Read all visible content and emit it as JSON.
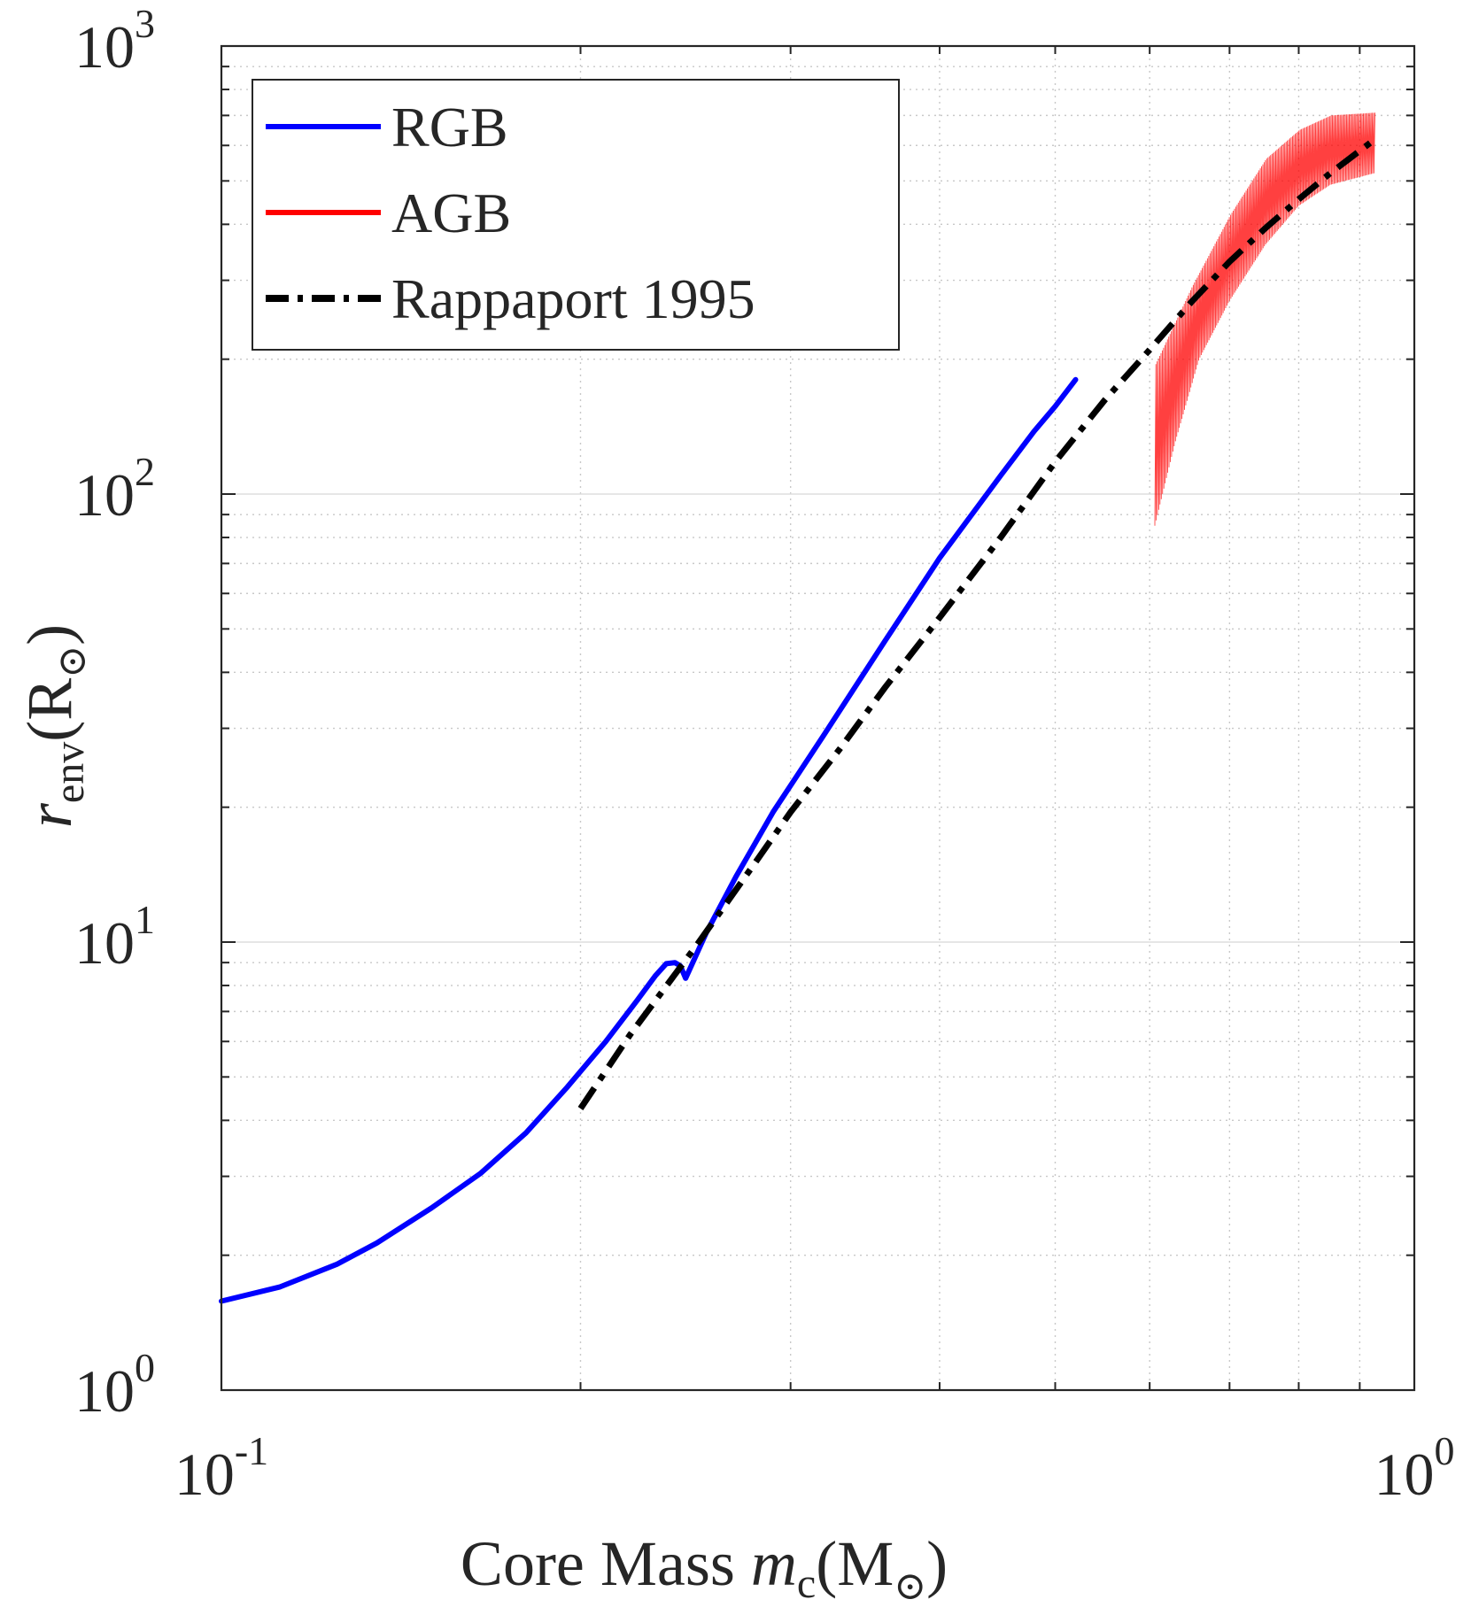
{
  "chart_data": {
    "type": "line",
    "x_scale": "log",
    "y_scale": "log",
    "xlim": [
      0.1,
      1.0
    ],
    "ylim": [
      1,
      1000
    ],
    "grid": true,
    "legend_position": "top-left",
    "xlabel": "Core Mass m_c(M_⊙)",
    "xlabel_parts": {
      "prefix": "Core Mass ",
      "var": "m",
      "sub": "c",
      "unit": "(M",
      "odot": "⊙",
      "close": ")"
    },
    "ylabel": "r_env(R_⊙)",
    "ylabel_parts": {
      "var": "r",
      "sub": "env",
      "unit": "(R",
      "odot": "⊙",
      "close": ")"
    },
    "x_ticks": [
      {
        "value": 0.1,
        "base": "10",
        "exp": "-1"
      },
      {
        "value": 1.0,
        "base": "10",
        "exp": "0"
      }
    ],
    "y_ticks": [
      {
        "value": 1,
        "base": "10",
        "exp": "0"
      },
      {
        "value": 10,
        "base": "10",
        "exp": "1"
      },
      {
        "value": 100,
        "base": "10",
        "exp": "2"
      },
      {
        "value": 1000,
        "base": "10",
        "exp": "3"
      }
    ],
    "series": [
      {
        "name": "RGB",
        "color": "#0000ff",
        "style": "solid",
        "points": [
          [
            0.1,
            1.58
          ],
          [
            0.112,
            1.7
          ],
          [
            0.125,
            1.91
          ],
          [
            0.135,
            2.13
          ],
          [
            0.15,
            2.55
          ],
          [
            0.165,
            3.05
          ],
          [
            0.18,
            3.75
          ],
          [
            0.195,
            4.75
          ],
          [
            0.21,
            6.0
          ],
          [
            0.223,
            7.4
          ],
          [
            0.231,
            8.4
          ],
          [
            0.236,
            8.95
          ],
          [
            0.24,
            9.0
          ],
          [
            0.2425,
            8.85
          ],
          [
            0.245,
            8.3
          ],
          [
            0.255,
            10.5
          ],
          [
            0.27,
            14.0
          ],
          [
            0.29,
            19.5
          ],
          [
            0.32,
            29.0
          ],
          [
            0.36,
            47.0
          ],
          [
            0.4,
            72.0
          ],
          [
            0.45,
            110.0
          ],
          [
            0.48,
            138.0
          ],
          [
            0.5,
            157.0
          ],
          [
            0.52,
            180.0
          ]
        ]
      },
      {
        "name": "AGB",
        "color": "#ff0000",
        "style": "band",
        "x_range": [
          0.606,
          0.925
        ],
        "upper": [
          [
            0.606,
            195
          ],
          [
            0.65,
            290
          ],
          [
            0.7,
            420
          ],
          [
            0.75,
            560
          ],
          [
            0.8,
            650
          ],
          [
            0.85,
            700
          ],
          [
            0.925,
            710
          ]
        ],
        "lower": [
          [
            0.606,
            85
          ],
          [
            0.63,
            130
          ],
          [
            0.66,
            200
          ],
          [
            0.7,
            270
          ],
          [
            0.75,
            360
          ],
          [
            0.8,
            440
          ],
          [
            0.85,
            490
          ],
          [
            0.925,
            520
          ]
        ]
      },
      {
        "name": "Rappaport 1995",
        "color": "#000000",
        "style": "dashdot",
        "points": [
          [
            0.2,
            4.25
          ],
          [
            0.22,
            6.2
          ],
          [
            0.25,
            9.8
          ],
          [
            0.28,
            15.0
          ],
          [
            0.3,
            19.5
          ],
          [
            0.33,
            27.0
          ],
          [
            0.36,
            37.0
          ],
          [
            0.4,
            53.0
          ],
          [
            0.45,
            80.0
          ],
          [
            0.5,
            118.0
          ],
          [
            0.55,
            162.0
          ],
          [
            0.6,
            210.0
          ],
          [
            0.65,
            268.0
          ],
          [
            0.7,
            330.0
          ],
          [
            0.75,
            392.0
          ],
          [
            0.8,
            455.0
          ],
          [
            0.85,
            520.0
          ],
          [
            0.92,
            610.0
          ]
        ]
      }
    ]
  }
}
